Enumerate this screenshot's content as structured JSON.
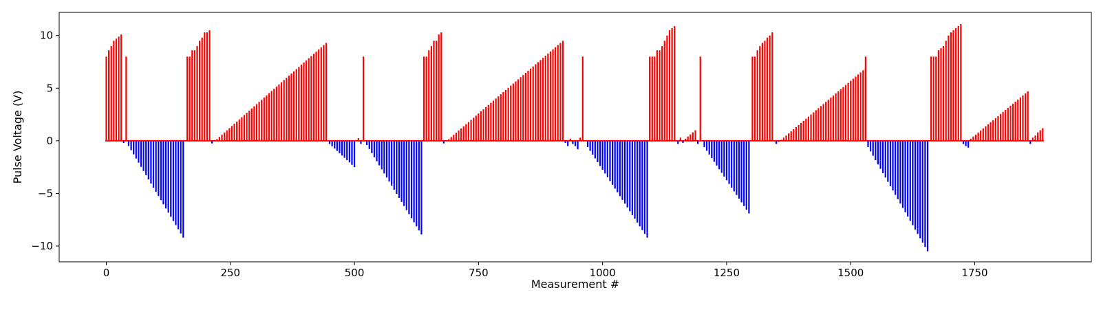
{
  "chart_data": {
    "type": "bar",
    "title": "",
    "xlabel": "Measurement #",
    "ylabel": "Pulse Voltage (V)",
    "xlim": [
      -95,
      1985
    ],
    "ylim": [
      -11.5,
      12.2
    ],
    "xticks": [
      0,
      250,
      500,
      750,
      1000,
      1250,
      1500,
      1750
    ],
    "yticks": [
      -10,
      -5,
      0,
      5,
      10
    ],
    "grid": false,
    "colors": {
      "positive": "#ff0000",
      "negative": "#0000ff",
      "axes": "#000000"
    },
    "segments": [
      {
        "kind": "flat",
        "start": 0,
        "step": 5,
        "values": [
          8.0,
          8.6,
          9.0,
          9.5,
          9.7,
          9.9,
          10.1
        ]
      },
      {
        "kind": "flat",
        "start": 35,
        "step": 5,
        "values": [
          -0.2,
          8.0
        ]
      },
      {
        "kind": "ramp",
        "start": 45,
        "step": 5,
        "count": 23,
        "from": -0.5,
        "to": -9.2
      },
      {
        "kind": "flat",
        "start": 163,
        "step": 5,
        "values": [
          8.0,
          8.0,
          8.6,
          8.6,
          9.0,
          9.5,
          9.8,
          10.3,
          10.3,
          10.5
        ]
      },
      {
        "kind": "ramp",
        "start": 213,
        "step": 5,
        "count": 47,
        "from": -0.25,
        "to": 9.3
      },
      {
        "kind": "ramp",
        "start": 450,
        "step": 5,
        "count": 11,
        "from": -0.3,
        "to": -2.5
      },
      {
        "kind": "flat",
        "start": 508,
        "step": 5,
        "values": [
          0.25,
          -0.3,
          8.0
        ]
      },
      {
        "kind": "ramp",
        "start": 525,
        "step": 5,
        "count": 23,
        "from": -0.4,
        "to": -8.9
      },
      {
        "kind": "flat",
        "start": 640,
        "step": 5,
        "values": [
          8.0,
          8.0,
          8.6,
          9.0,
          9.5,
          9.5,
          10.1,
          10.3
        ]
      },
      {
        "kind": "ramp",
        "start": 680,
        "step": 5,
        "count": 49,
        "from": -0.25,
        "to": 9.5
      },
      {
        "kind": "flat",
        "start": 925,
        "step": 5,
        "values": [
          -0.2,
          -0.5,
          0.2,
          -0.3,
          -0.5,
          -0.8,
          0.3,
          8.0
        ]
      },
      {
        "kind": "ramp",
        "start": 970,
        "step": 5,
        "count": 25,
        "from": -0.6,
        "to": -9.2
      },
      {
        "kind": "flat",
        "start": 1095,
        "step": 5,
        "values": [
          8.0,
          8.0,
          8.0,
          8.6,
          8.6,
          9.0,
          9.5,
          10.0,
          10.5,
          10.7,
          10.9
        ]
      },
      {
        "kind": "flat",
        "start": 1152,
        "step": 5,
        "values": [
          -0.3,
          0.3,
          -0.2,
          0.2,
          0.4,
          0.6,
          0.8,
          1.0,
          -0.3,
          8.0
        ]
      },
      {
        "kind": "ramp",
        "start": 1205,
        "step": 5,
        "count": 19,
        "from": -0.6,
        "to": -6.9
      },
      {
        "kind": "flat",
        "start": 1302,
        "step": 5,
        "values": [
          8.0,
          8.0,
          8.6,
          9.0,
          9.3,
          9.5,
          9.8,
          10.0,
          10.3
        ]
      },
      {
        "kind": "ramp",
        "start": 1350,
        "step": 5,
        "count": 37,
        "from": -0.3,
        "to": 6.9
      },
      {
        "kind": "flat",
        "start": 1530,
        "step": 5,
        "values": [
          8.0
        ]
      },
      {
        "kind": "ramp",
        "start": 1535,
        "step": 5,
        "count": 25,
        "from": -0.6,
        "to": -10.5
      },
      {
        "kind": "flat",
        "start": 1662,
        "step": 5,
        "values": [
          8.0,
          8.0,
          8.0,
          8.6,
          8.8,
          9.0,
          9.5,
          10.0,
          10.3,
          10.5,
          10.7,
          10.9,
          11.1
        ]
      },
      {
        "kind": "flat",
        "start": 1727,
        "step": 5,
        "values": [
          -0.3,
          -0.5,
          -0.65
        ]
      },
      {
        "kind": "ramp",
        "start": 1742,
        "step": 5,
        "count": 24,
        "from": 0.2,
        "to": 4.7
      },
      {
        "kind": "flat",
        "start": 1862,
        "step": 5,
        "values": [
          -0.3,
          0.3,
          0.5,
          0.8,
          1.0,
          1.2
        ]
      }
    ]
  }
}
